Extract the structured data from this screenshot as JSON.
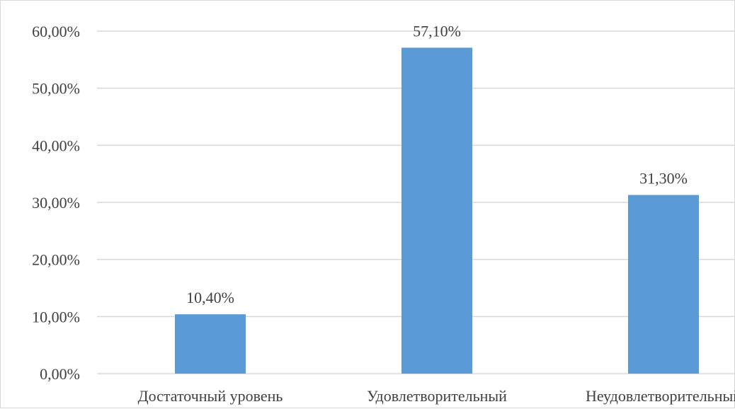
{
  "chart_data": {
    "type": "bar",
    "categories": [
      "Достаточный уровень",
      "Удовлетворительный",
      "Неудовлетворительный"
    ],
    "values": [
      10.4,
      57.1,
      31.3
    ],
    "value_labels": [
      "10,40%",
      "57,10%",
      "31,30%"
    ],
    "y_ticks": [
      0,
      10,
      20,
      30,
      40,
      50,
      60
    ],
    "y_tick_labels": [
      "0,00%",
      "10,00%",
      "20,00%",
      "30,00%",
      "40,00%",
      "50,00%",
      "60,00%"
    ],
    "ylim": [
      0,
      60
    ],
    "grid": true,
    "bar_color": "#5b9bd5",
    "grid_color": "#d9d9d9",
    "legend": "none"
  }
}
